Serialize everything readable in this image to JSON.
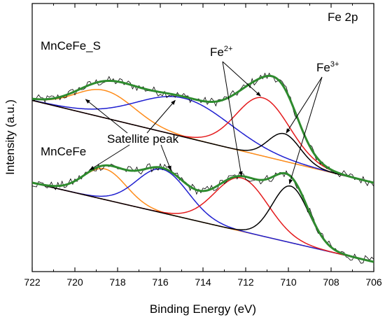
{
  "chart_data": {
    "type": "line",
    "panel_label": "Fe 2p",
    "xlabel": "Binding Energy (eV)",
    "ylabel": "Intensity (a.u.)",
    "xlim": [
      722,
      706
    ],
    "x_reversed": true,
    "x_ticks": [
      722,
      720,
      718,
      716,
      714,
      712,
      710,
      708,
      706
    ],
    "y_ticks_shown": false,
    "samples": [
      {
        "name": "MnCeFe_S",
        "baseline": {
          "at_722": 2.0,
          "at_706": 0.98
        },
        "fit_components": [
          {
            "color": "#000000",
            "label": "Fe3+",
            "center": 710.2,
            "height": 0.34,
            "width": 0.75
          },
          {
            "color": "#e41a1c",
            "label": "Fe2+",
            "center": 711.2,
            "height": 0.72,
            "width": 1.25
          },
          {
            "color": "#1f1fd0",
            "label": "Satellite peak",
            "center": 714.9,
            "height": 0.48,
            "width": 2.2
          },
          {
            "color": "#ff8c1a",
            "label": "Satellite peak",
            "center": 718.6,
            "height": 0.34,
            "width": 1.4
          }
        ],
        "envelope_color": "#2e8b2e"
      },
      {
        "name": "MnCeFe",
        "baseline": {
          "at_722": 0.98,
          "at_706": 0.0
        },
        "fit_components": [
          {
            "color": "#000000",
            "label": "Fe3+",
            "center": 709.9,
            "height": 0.7,
            "width": 0.85
          },
          {
            "color": "#e41a1c",
            "label": "Fe2+",
            "center": 712.2,
            "height": 0.66,
            "width": 1.25
          },
          {
            "color": "#1f1fd0",
            "label": "Satellite peak",
            "center": 715.9,
            "height": 0.54,
            "width": 1.2
          },
          {
            "color": "#ff8c1a",
            "label": "Satellite peak",
            "center": 718.6,
            "height": 0.38,
            "width": 1.0
          }
        ],
        "envelope_color": "#2e8b2e"
      }
    ],
    "annotations": [
      {
        "text": "Fe",
        "sup": "2+"
      },
      {
        "text": "Fe",
        "sup": "3+"
      },
      {
        "text": "Satellite peak"
      }
    ],
    "ylim": [
      -0.12,
      3.2
    ]
  }
}
